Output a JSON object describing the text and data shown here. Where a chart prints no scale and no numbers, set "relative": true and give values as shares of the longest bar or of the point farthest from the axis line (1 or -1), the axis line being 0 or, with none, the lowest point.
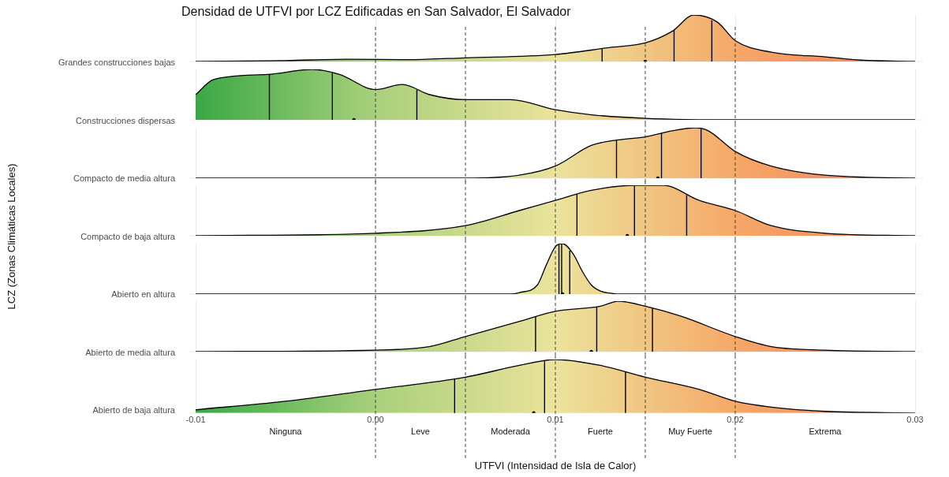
{
  "chart_data": [
    {
      "type": "area",
      "title": "Densidad de UTFVI por LCZ Edificadas en San Salvador, El Salvador",
      "ylabel": "Grandes construcciones bajas",
      "annotations": [
        "LCZ (Zonas Climáticas Locales)"
      ],
      "relative": true,
      "grid": true,
      "tick_labels": false,
      "colors": [
        "#3aa845",
        "#a9d07c",
        "#ebe39c",
        "#f6a868",
        "#f07e58"
      ],
      "xlim": [
        -0.01,
        0.03
      ],
      "xticks": [
        -0.01,
        0,
        0.01,
        0.02,
        0.03
      ],
      "series": [
        {
          "color": "#000000",
          "x": [
            -0.01,
            -0.005,
            -0.0016,
            0.002,
            0.005,
            0.01,
            0.013,
            0.015,
            0.0165,
            0.0177,
            0.019,
            0.02,
            0.022,
            0.025,
            0.027,
            0.03
          ],
          "values": [
            0,
            0.02,
            0.05,
            0.04,
            0.08,
            0.15,
            0.3,
            0.4,
            0.65,
            1,
            0.85,
            0.45,
            0.2,
            0.1,
            0.03,
            0
          ]
        },
        {
          "type": "scatter",
          "color": "#000000",
          "x": [
            0.015
          ],
          "values": [
            0
          ]
        }
      ],
      "ref_lines": [
        {
          "axis": "x",
          "value": 0,
          "line_style": "dashed",
          "color": "#333333"
        },
        {
          "axis": "x",
          "value": 0.005,
          "line_style": "dashed",
          "color": "#333333"
        },
        {
          "axis": "x",
          "value": 0.01,
          "line_style": "dashed",
          "color": "#333333"
        },
        {
          "axis": "x",
          "value": 0.015,
          "line_style": "dashed",
          "color": "#333333"
        },
        {
          "axis": "x",
          "value": 0.02,
          "line_style": "dashed",
          "color": "#333333"
        },
        {
          "axis": "x",
          "value": 0.0126,
          "line_style": "solid",
          "color": "#000000"
        },
        {
          "axis": "x",
          "value": 0.0166,
          "line_style": "solid",
          "color": "#000000"
        },
        {
          "axis": "x",
          "value": 0.0187,
          "line_style": "solid",
          "color": "#000000"
        }
      ]
    },
    {
      "type": "area",
      "ylabel": "Construcciones dispersas",
      "relative": true,
      "grid": true,
      "tick_labels": false,
      "colors": [
        "#3aa845",
        "#a9d07c",
        "#ebe39c",
        "#f6a868",
        "#f07e58"
      ],
      "xlim": [
        -0.01,
        0.03
      ],
      "xticks": [
        -0.01,
        0,
        0.01,
        0.02,
        0.03
      ],
      "series": [
        {
          "color": "#000000",
          "x": [
            -0.01,
            -0.009,
            -0.006,
            -0.0035,
            -0.002,
            0,
            0.0015,
            0.003,
            0.005,
            0.0075,
            0.01,
            0.012,
            0.015,
            0.02,
            0.03
          ],
          "values": [
            0.5,
            0.8,
            0.9,
            1,
            0.9,
            0.6,
            0.7,
            0.5,
            0.4,
            0.4,
            0.2,
            0.1,
            0.03,
            0,
            0
          ]
        },
        {
          "type": "scatter",
          "color": "#000000",
          "x": [
            -0.0012
          ],
          "values": [
            0
          ]
        }
      ],
      "ref_lines": [
        {
          "axis": "x",
          "value": 0,
          "line_style": "dashed",
          "color": "#333333"
        },
        {
          "axis": "x",
          "value": 0.005,
          "line_style": "dashed",
          "color": "#333333"
        },
        {
          "axis": "x",
          "value": 0.01,
          "line_style": "dashed",
          "color": "#333333"
        },
        {
          "axis": "x",
          "value": 0.015,
          "line_style": "dashed",
          "color": "#333333"
        },
        {
          "axis": "x",
          "value": 0.02,
          "line_style": "dashed",
          "color": "#333333"
        },
        {
          "axis": "x",
          "value": -0.0059,
          "line_style": "solid",
          "color": "#000000"
        },
        {
          "axis": "x",
          "value": -0.0024,
          "line_style": "solid",
          "color": "#000000"
        },
        {
          "axis": "x",
          "value": 0.0023,
          "line_style": "solid",
          "color": "#000000"
        }
      ]
    },
    {
      "type": "area",
      "ylabel": "Compacto de media altura",
      "relative": true,
      "grid": true,
      "tick_labels": false,
      "colors": [
        "#3aa845",
        "#a9d07c",
        "#ebe39c",
        "#f6a868",
        "#f07e58"
      ],
      "xlim": [
        -0.01,
        0.03
      ],
      "xticks": [
        -0.01,
        0,
        0.01,
        0.02,
        0.03
      ],
      "series": [
        {
          "color": "#000000",
          "x": [
            -0.01,
            0.005,
            0.008,
            0.01,
            0.012,
            0.0135,
            0.015,
            0.0165,
            0.0178,
            0.0185,
            0.02,
            0.022,
            0.025,
            0.03
          ],
          "values": [
            0,
            0,
            0.06,
            0.24,
            0.65,
            0.76,
            0.82,
            0.94,
            1,
            0.94,
            0.53,
            0.24,
            0.06,
            0
          ]
        },
        {
          "type": "scatter",
          "color": "#000000",
          "x": [
            0.0157
          ],
          "values": [
            0
          ]
        }
      ],
      "ref_lines": [
        {
          "axis": "x",
          "value": 0,
          "line_style": "dashed",
          "color": "#333333"
        },
        {
          "axis": "x",
          "value": 0.005,
          "line_style": "dashed",
          "color": "#333333"
        },
        {
          "axis": "x",
          "value": 0.01,
          "line_style": "dashed",
          "color": "#333333"
        },
        {
          "axis": "x",
          "value": 0.015,
          "line_style": "dashed",
          "color": "#333333"
        },
        {
          "axis": "x",
          "value": 0.02,
          "line_style": "dashed",
          "color": "#333333"
        },
        {
          "axis": "x",
          "value": 0.0134,
          "line_style": "solid",
          "color": "#000000"
        },
        {
          "axis": "x",
          "value": 0.0159,
          "line_style": "solid",
          "color": "#000000"
        },
        {
          "axis": "x",
          "value": 0.0181,
          "line_style": "solid",
          "color": "#000000"
        }
      ]
    },
    {
      "type": "area",
      "ylabel": "Compacto de baja altura",
      "relative": true,
      "grid": true,
      "tick_labels": false,
      "colors": [
        "#3aa845",
        "#a9d07c",
        "#ebe39c",
        "#f6a868",
        "#f07e58"
      ],
      "xlim": [
        -0.01,
        0.03
      ],
      "xticks": [
        -0.01,
        0,
        0.01,
        0.02,
        0.03
      ],
      "series": [
        {
          "color": "#000000",
          "x": [
            -0.01,
            0,
            0.005,
            0.008,
            0.01,
            0.012,
            0.0145,
            0.016,
            0.018,
            0.02,
            0.022,
            0.025,
            0.03
          ],
          "values": [
            0,
            0.05,
            0.2,
            0.5,
            0.7,
            0.9,
            1,
            1,
            0.7,
            0.5,
            0.2,
            0.05,
            0
          ]
        },
        {
          "type": "scatter",
          "color": "#000000",
          "x": [
            0.014
          ],
          "values": [
            0
          ]
        }
      ],
      "ref_lines": [
        {
          "axis": "x",
          "value": 0,
          "line_style": "dashed",
          "color": "#333333"
        },
        {
          "axis": "x",
          "value": 0.005,
          "line_style": "dashed",
          "color": "#333333"
        },
        {
          "axis": "x",
          "value": 0.01,
          "line_style": "dashed",
          "color": "#333333"
        },
        {
          "axis": "x",
          "value": 0.015,
          "line_style": "dashed",
          "color": "#333333"
        },
        {
          "axis": "x",
          "value": 0.02,
          "line_style": "dashed",
          "color": "#333333"
        },
        {
          "axis": "x",
          "value": 0.0112,
          "line_style": "solid",
          "color": "#000000"
        },
        {
          "axis": "x",
          "value": 0.0144,
          "line_style": "solid",
          "color": "#000000"
        },
        {
          "axis": "x",
          "value": 0.0173,
          "line_style": "solid",
          "color": "#000000"
        }
      ]
    },
    {
      "type": "area",
      "ylabel": "Abierto en altura",
      "relative": true,
      "grid": true,
      "tick_labels": false,
      "colors": [
        "#3aa845",
        "#a9d07c",
        "#ebe39c",
        "#f6a868",
        "#f07e58"
      ],
      "xlim": [
        -0.01,
        0.03
      ],
      "xticks": [
        -0.01,
        0,
        0.01,
        0.02,
        0.03
      ],
      "series": [
        {
          "color": "#000000",
          "x": [
            -0.01,
            0.0075,
            0.008,
            0.009,
            0.0095,
            0.01,
            0.0104,
            0.011,
            0.0115,
            0.012,
            0.0125,
            0.013,
            0.0135,
            0.03
          ],
          "values": [
            0,
            0,
            0.03,
            0.18,
            0.58,
            0.94,
            1,
            0.79,
            0.45,
            0.18,
            0.06,
            0.02,
            0,
            0
          ]
        },
        {
          "type": "scatter",
          "color": "#000000",
          "x": [
            0.0104
          ],
          "values": [
            0
          ]
        }
      ],
      "ref_lines": [
        {
          "axis": "x",
          "value": 0,
          "line_style": "dashed",
          "color": "#333333"
        },
        {
          "axis": "x",
          "value": 0.005,
          "line_style": "dashed",
          "color": "#333333"
        },
        {
          "axis": "x",
          "value": 0.01,
          "line_style": "dashed",
          "color": "#333333"
        },
        {
          "axis": "x",
          "value": 0.015,
          "line_style": "dashed",
          "color": "#333333"
        },
        {
          "axis": "x",
          "value": 0.02,
          "line_style": "dashed",
          "color": "#333333"
        },
        {
          "axis": "x",
          "value": 0.0102,
          "line_style": "solid",
          "color": "#000000"
        },
        {
          "axis": "x",
          "value": 0.01035,
          "line_style": "solid",
          "color": "#000000"
        },
        {
          "axis": "x",
          "value": 0.0108,
          "line_style": "solid",
          "color": "#000000"
        }
      ]
    },
    {
      "type": "area",
      "ylabel": "Abierto de media altura",
      "relative": true,
      "grid": true,
      "tick_labels": false,
      "colors": [
        "#3aa845",
        "#a9d07c",
        "#ebe39c",
        "#f6a868",
        "#f07e58"
      ],
      "xlim": [
        -0.01,
        0.03
      ],
      "xticks": [
        -0.01,
        0,
        0.01,
        0.02,
        0.03
      ],
      "series": [
        {
          "color": "#000000",
          "x": [
            -0.01,
            0,
            0.003,
            0.005,
            0.008,
            0.01,
            0.0125,
            0.0135,
            0.015,
            0.017,
            0.02,
            0.022,
            0.025,
            0.03
          ],
          "values": [
            0,
            0.03,
            0.1,
            0.3,
            0.6,
            0.8,
            0.9,
            1,
            0.9,
            0.7,
            0.3,
            0.1,
            0.03,
            0
          ]
        },
        {
          "type": "scatter",
          "color": "#000000",
          "x": [
            0.012
          ],
          "values": [
            0
          ]
        }
      ],
      "ref_lines": [
        {
          "axis": "x",
          "value": 0,
          "line_style": "dashed",
          "color": "#333333"
        },
        {
          "axis": "x",
          "value": 0.005,
          "line_style": "dashed",
          "color": "#333333"
        },
        {
          "axis": "x",
          "value": 0.01,
          "line_style": "dashed",
          "color": "#333333"
        },
        {
          "axis": "x",
          "value": 0.015,
          "line_style": "dashed",
          "color": "#333333"
        },
        {
          "axis": "x",
          "value": 0.02,
          "line_style": "dashed",
          "color": "#333333"
        },
        {
          "axis": "x",
          "value": 0.0089,
          "line_style": "solid",
          "color": "#000000"
        },
        {
          "axis": "x",
          "value": 0.0123,
          "line_style": "solid",
          "color": "#000000"
        },
        {
          "axis": "x",
          "value": 0.0154,
          "line_style": "solid",
          "color": "#000000"
        }
      ]
    },
    {
      "type": "area",
      "ylabel": "Abierto de baja altura",
      "xlabel": "UTFVI (Intensidad de Isla de Calor)",
      "relative": true,
      "grid": true,
      "tick_labels": "x",
      "colors": [
        "#3aa845",
        "#a9d07c",
        "#ebe39c",
        "#f6a868",
        "#f07e58"
      ],
      "xlim": [
        -0.01,
        0.03
      ],
      "xticks": [
        -0.01,
        {
          "value": 0,
          "label": "0.00"
        },
        0.01,
        0.02,
        0.03
      ],
      "series": [
        {
          "color": "#000000",
          "x": [
            -0.01,
            -0.005,
            0,
            0.005,
            0.008,
            0.01,
            0.0125,
            0.015,
            0.018,
            0.02,
            0.022,
            0.025,
            0.03
          ],
          "values": [
            0.06,
            0.22,
            0.44,
            0.67,
            0.89,
            1,
            0.89,
            0.67,
            0.44,
            0.22,
            0.11,
            0.03,
            0
          ]
        },
        {
          "type": "scatter",
          "color": "#000000",
          "x": [
            0.0088
          ],
          "values": [
            0
          ]
        }
      ],
      "ref_lines": [
        {
          "axis": "x",
          "value": 0,
          "line_style": "dashed",
          "color": "#333333"
        },
        {
          "axis": "x",
          "value": 0.005,
          "line_style": "dashed",
          "color": "#333333"
        },
        {
          "axis": "x",
          "value": 0.01,
          "line_style": "dashed",
          "color": "#333333"
        },
        {
          "axis": "x",
          "value": 0.015,
          "line_style": "dashed",
          "color": "#333333"
        },
        {
          "axis": "x",
          "value": 0.02,
          "line_style": "dashed",
          "color": "#333333"
        },
        {
          "axis": "x",
          "value": 0.0044,
          "line_style": "solid",
          "color": "#000000"
        },
        {
          "axis": "x",
          "value": 0.0094,
          "line_style": "solid",
          "color": "#000000"
        },
        {
          "axis": "x",
          "value": 0.0139,
          "line_style": "solid",
          "color": "#000000"
        }
      ],
      "annotations": [
        "Ninguna",
        "Leve",
        "Moderada",
        "Fuerte",
        "Muy Fuerte",
        "Extrema"
      ]
    }
  ]
}
